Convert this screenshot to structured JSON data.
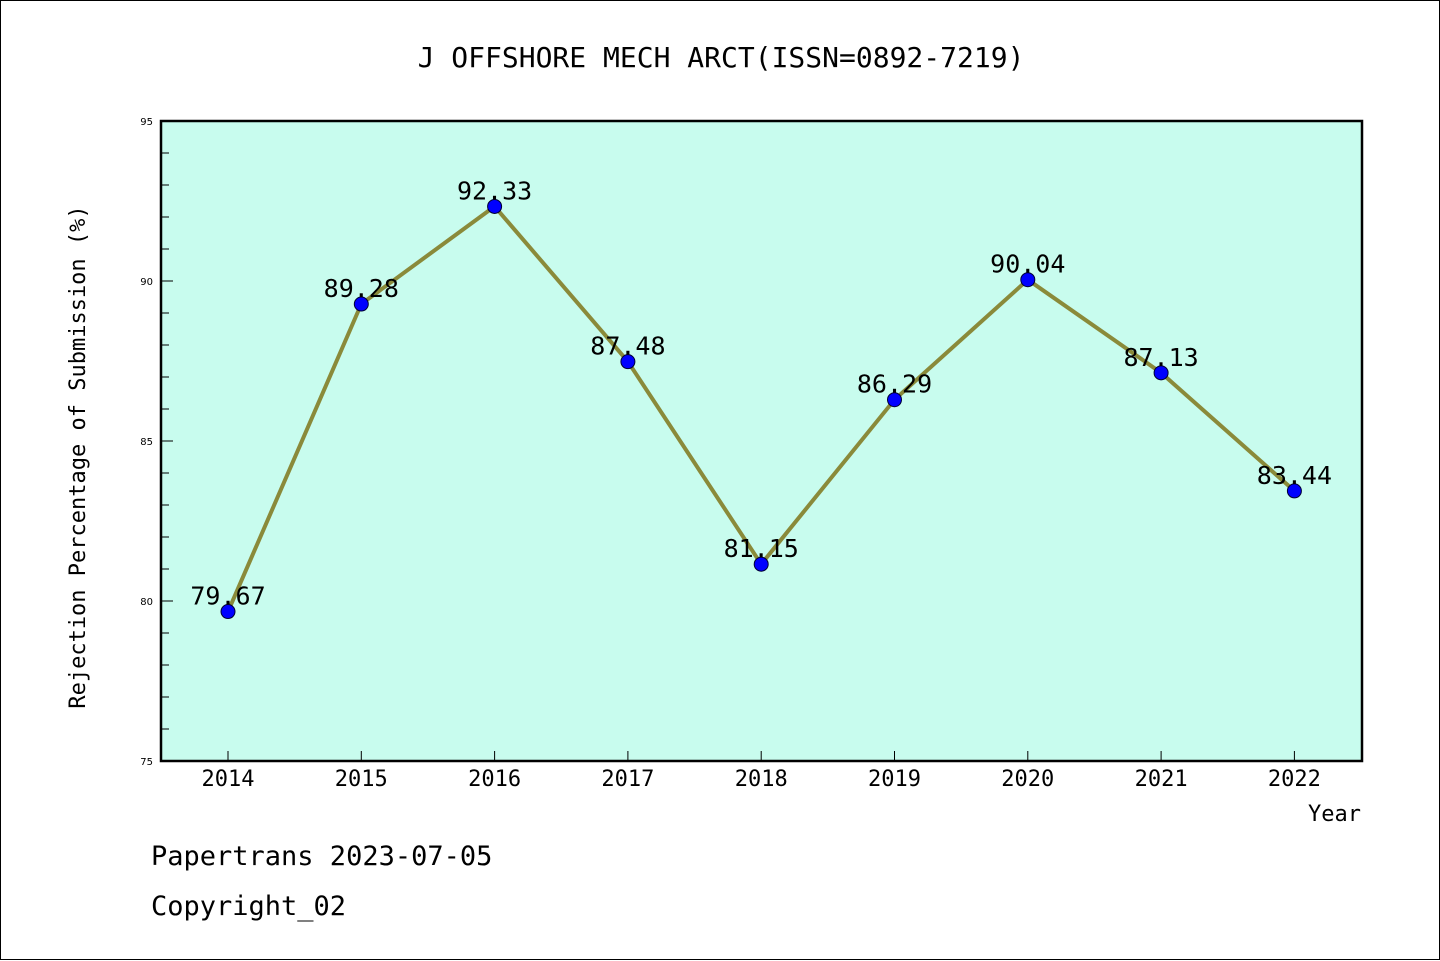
{
  "chart_data": {
    "type": "line",
    "title": "J OFFSHORE MECH ARCT(ISSN=0892-7219)",
    "xlabel": "Year",
    "ylabel": "Rejection Percentage of Submission (%)",
    "categories": [
      "2014",
      "2015",
      "2016",
      "2017",
      "2018",
      "2019",
      "2020",
      "2021",
      "2022"
    ],
    "values": [
      79.67,
      89.28,
      92.33,
      87.48,
      81.15,
      86.29,
      90.04,
      87.13,
      83.44
    ],
    "data_labels": [
      "79.67",
      "89.28",
      "92.33",
      "87.48",
      "81.15",
      "86.29",
      "90.04",
      "87.13",
      "83.44"
    ],
    "ylim": [
      75,
      95
    ],
    "yticks": [
      "75",
      "80",
      "85",
      "90",
      "95"
    ],
    "grid": false,
    "colors": {
      "plot_background": "#c8fcee",
      "line": "#8a8a3a",
      "marker": "#0000ff"
    }
  },
  "footer": {
    "line1": "Papertrans 2023-07-05",
    "line2": "Copyright_02"
  }
}
